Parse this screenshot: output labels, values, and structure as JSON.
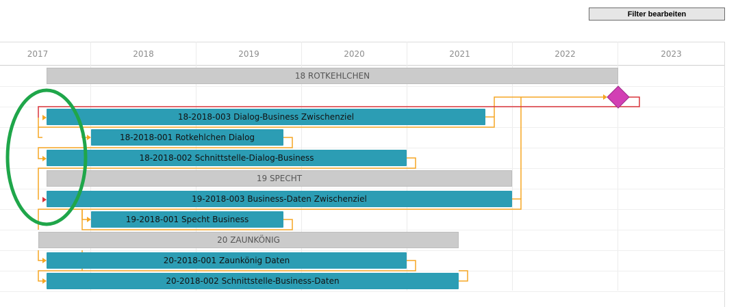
{
  "toolbar": {
    "filter_label": "Filter bearbeiten"
  },
  "timeline": {
    "years": [
      "2017",
      "2018",
      "2019",
      "2020",
      "2021",
      "2022",
      "2023"
    ]
  },
  "groups": {
    "g18": "18 ROTKEHLCHEN",
    "g19": "19 SPECHT",
    "g20": "20 ZAUNKÖNIG"
  },
  "tasks": {
    "t1": "18-2018-003 Dialog-Business Zwischenziel",
    "t2": "18-2018-001 Rotkehlchen Dialog",
    "t3": "18-2018-002 Schnittstelle-Dialog-Business",
    "t4": "19-2018-003 Business-Daten Zwischenziel",
    "t5": "19-2018-001 Specht Business",
    "t6": "20-2018-001 Zaunkönig Daten",
    "t7": "20-2018-002 Schnittstelle-Business-Daten"
  },
  "colors": {
    "task_bar": "#2c9db4",
    "group_bar": "#cbcbcb",
    "dependency": "#f5a623",
    "critical_dependency": "#d9343a",
    "milestone": "#d23fb4",
    "annotation_circle": "#1fa64a"
  },
  "icons": {
    "milestone": "milestone-diamond-icon",
    "annotation": "annotation-ellipse"
  }
}
